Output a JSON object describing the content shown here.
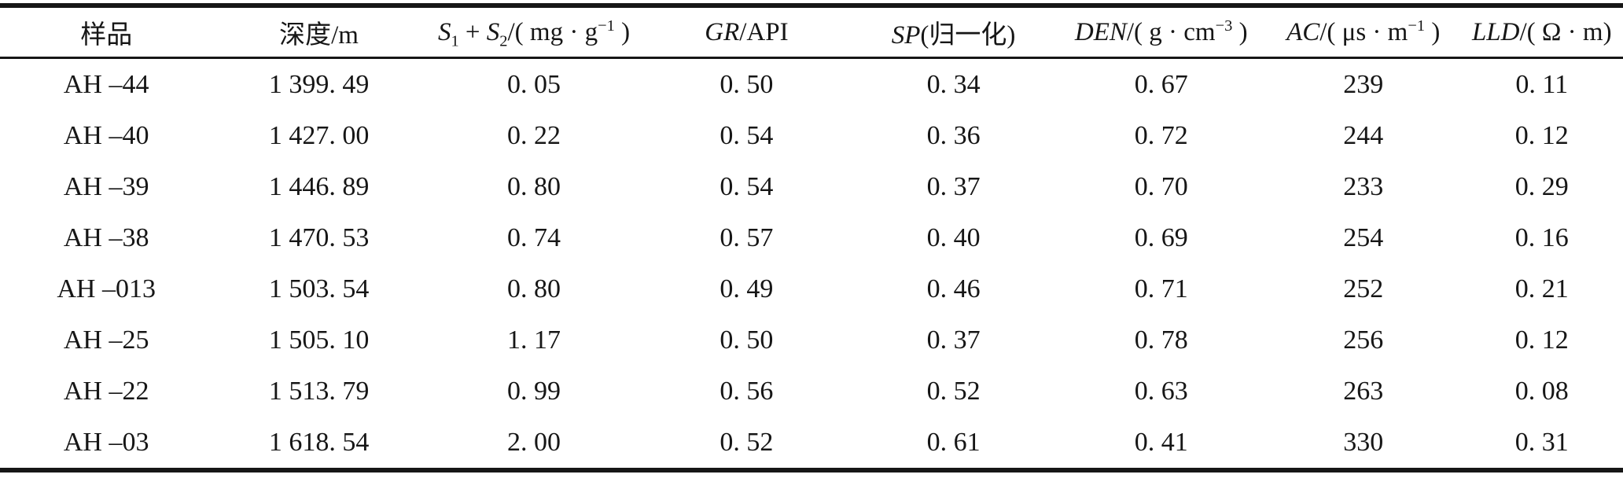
{
  "table": {
    "description_colors": {
      "rule": "#161616",
      "text": "#161616",
      "background": "#ffffff"
    },
    "columns": [
      {
        "name": "sample",
        "label": "样品",
        "label_html": "样品"
      },
      {
        "name": "depth-m",
        "label": "深度/m",
        "label_html": "深度/m"
      },
      {
        "name": "s1-plus-s2",
        "label": "S1 + S2/( mg · g−1 )",
        "label_html": "<i>S</i><sub>1</sub> + <i>S</i><sub>2</sub>/( mg · g<sup>−1</sup> )"
      },
      {
        "name": "gr-api",
        "label": "GR/API",
        "label_html": "<i>GR</i>/API"
      },
      {
        "name": "sp-normalized",
        "label": "SP(归一化)",
        "label_html": "<i>SP</i>(归一化)"
      },
      {
        "name": "den",
        "label": "DEN/( g · cm−3 )",
        "label_html": "<i>DEN</i>/( g · cm<sup>−3</sup> )"
      },
      {
        "name": "ac",
        "label": "AC/( μs · m−1 )",
        "label_html": "<i>AC</i>/( μs · m<sup>−1</sup> )"
      },
      {
        "name": "lld",
        "label": "LLD/( Ω · m)",
        "label_html": "<i>LLD</i>/( Ω · m)"
      }
    ],
    "column_widths_pct": [
      13.1,
      13.1,
      13.4,
      12.8,
      12.7,
      12.9,
      12.0,
      10.0
    ],
    "rows": [
      [
        "AH –44",
        "1 399. 49",
        "0. 05",
        "0. 50",
        "0. 34",
        "0. 67",
        "239",
        "0. 11"
      ],
      [
        "AH –40",
        "1 427. 00",
        "0. 22",
        "0. 54",
        "0. 36",
        "0. 72",
        "244",
        "0. 12"
      ],
      [
        "AH –39",
        "1 446. 89",
        "0. 80",
        "0. 54",
        "0. 37",
        "0. 70",
        "233",
        "0. 29"
      ],
      [
        "AH –38",
        "1 470. 53",
        "0. 74",
        "0. 57",
        "0. 40",
        "0. 69",
        "254",
        "0. 16"
      ],
      [
        "AH –013",
        "1 503. 54",
        "0. 80",
        "0. 49",
        "0. 46",
        "0. 71",
        "252",
        "0. 21"
      ],
      [
        "AH –25",
        "1 505. 10",
        "1. 17",
        "0. 50",
        "0. 37",
        "0. 78",
        "256",
        "0. 12"
      ],
      [
        "AH –22",
        "1 513. 79",
        "0. 99",
        "0. 56",
        "0. 52",
        "0. 63",
        "263",
        "0. 08"
      ],
      [
        "AH –03",
        "1 618. 54",
        "2. 00",
        "0. 52",
        "0. 61",
        "0. 41",
        "330",
        "0. 31"
      ]
    ]
  }
}
